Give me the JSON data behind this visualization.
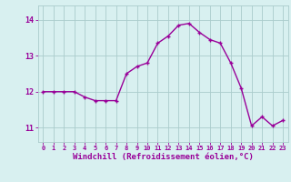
{
  "x": [
    0,
    1,
    2,
    3,
    4,
    5,
    6,
    7,
    8,
    9,
    10,
    11,
    12,
    13,
    14,
    15,
    16,
    17,
    18,
    19,
    20,
    21,
    22,
    23
  ],
  "y": [
    12.0,
    12.0,
    12.0,
    12.0,
    11.85,
    11.75,
    11.75,
    11.75,
    12.5,
    12.7,
    12.8,
    13.35,
    13.55,
    13.85,
    13.9,
    13.65,
    13.45,
    13.35,
    12.8,
    12.1,
    11.05,
    11.3,
    11.05,
    11.2
  ],
  "line_color": "#990099",
  "marker": "+",
  "markersize": 3,
  "linewidth": 1.0,
  "bg_color": "#d8f0f0",
  "grid_color": "#aacccc",
  "tick_color": "#990099",
  "xlabel": "Windchill (Refroidissement éolien,°C)",
  "xlabel_fontsize": 6.5,
  "ylabel_ticks": [
    11,
    12,
    13,
    14
  ],
  "xlim": [
    -0.5,
    23.5
  ],
  "ylim": [
    10.6,
    14.4
  ],
  "xtick_labels": [
    "0",
    "1",
    "2",
    "3",
    "4",
    "5",
    "6",
    "7",
    "8",
    "9",
    "10",
    "11",
    "12",
    "13",
    "14",
    "15",
    "16",
    "17",
    "18",
    "19",
    "20",
    "21",
    "22",
    "23"
  ]
}
